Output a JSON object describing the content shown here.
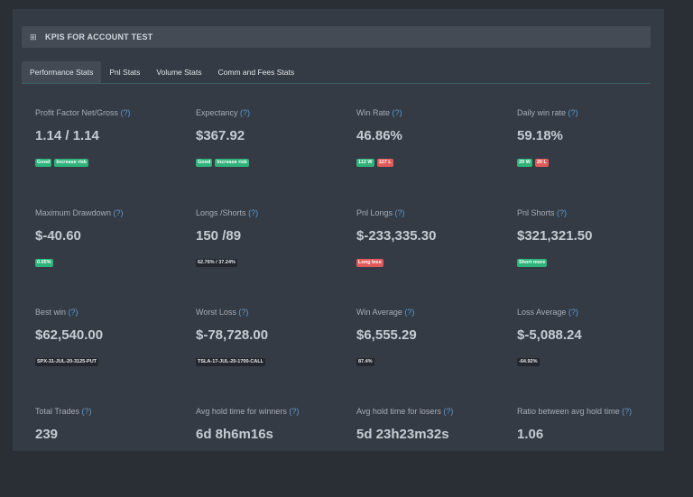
{
  "header": {
    "icon": "table-icon",
    "title": "KPIS FOR ACCOUNT TEST"
  },
  "tabs": [
    {
      "label": "Performance Stats"
    },
    {
      "label": "Pnl Stats"
    },
    {
      "label": "Volume Stats"
    },
    {
      "label": "Comm and Fees Stats"
    }
  ],
  "help": "(?)",
  "colors": {
    "good": "#2fb37a",
    "bad": "#e05a5a",
    "neutral": "#23272d",
    "help_link": "#5b9bd5"
  },
  "kpis": [
    {
      "label": "Profit Factor Net/Gross",
      "value": "1.14 / 1.14",
      "badges": [
        {
          "text": "Good"
        },
        {
          "text": "Increase risk"
        }
      ]
    },
    {
      "label": "Expectancy",
      "value": "$367.92",
      "badges": [
        {
          "text": "Good"
        },
        {
          "text": "Increase risk"
        }
      ]
    },
    {
      "label": "Win Rate",
      "value": "46.86%",
      "badges": [
        {
          "text": "112 W"
        },
        {
          "text": "127 L"
        }
      ]
    },
    {
      "label": "Daily win rate",
      "value": "59.18%",
      "badges": [
        {
          "text": "29 W"
        },
        {
          "text": "20 L"
        }
      ]
    },
    {
      "label": "Maximum Drawdown",
      "value": "$-40.60",
      "badges": [
        {
          "text": "0.05%"
        }
      ]
    },
    {
      "label": "Longs /Shorts",
      "value": "150 /89",
      "badges": [
        {
          "text": "62.76% / 37.24%"
        }
      ]
    },
    {
      "label": "Pnl Longs",
      "value": "$-233,335.30",
      "badges": [
        {
          "text": "Long less"
        }
      ]
    },
    {
      "label": "Pnl Shorts",
      "value": "$321,321.50",
      "badges": [
        {
          "text": "Short more"
        }
      ]
    },
    {
      "label": "Best win",
      "value": "$62,540.00",
      "badges": [
        {
          "text": "SPX-31-JUL-20-3125-PUT"
        }
      ]
    },
    {
      "label": "Worst Loss",
      "value": "$-78,728.00",
      "badges": [
        {
          "text": "TSLA-17-JUL-20-1700-CALL"
        }
      ]
    },
    {
      "label": "Win Average",
      "value": "$6,555.29",
      "badges": [
        {
          "text": "87.4%"
        }
      ]
    },
    {
      "label": "Loss Average",
      "value": "$-5,088.24",
      "badges": [
        {
          "text": "-64.92%"
        }
      ]
    },
    {
      "label": "Total Trades",
      "value": "239",
      "badges": []
    },
    {
      "label": "Avg hold time for winners",
      "value": "6d 8h6m16s",
      "badges": []
    },
    {
      "label": "Avg hold time for losers",
      "value": "5d 23h23m32s",
      "badges": []
    },
    {
      "label": "Ratio between avg hold time",
      "value": "1.06",
      "badges": []
    }
  ]
}
